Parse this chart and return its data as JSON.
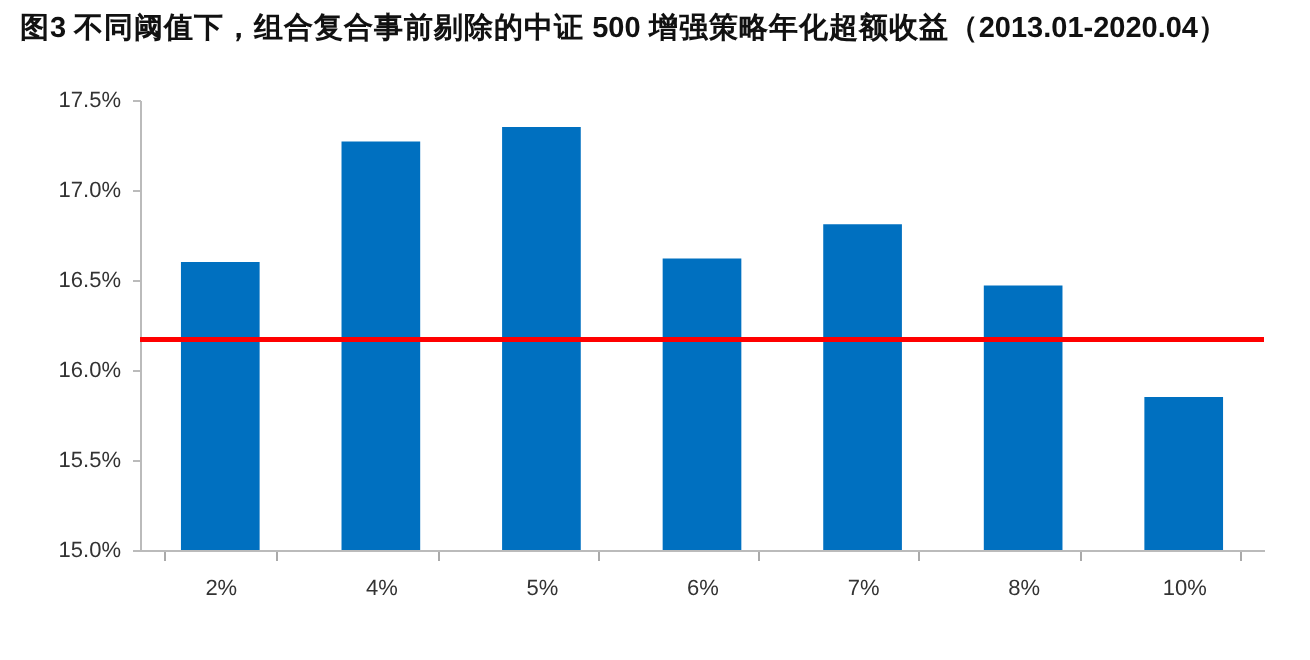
{
  "chart_data": {
    "type": "bar",
    "title": "图3  不同阈值下，组合复合事前剔除的中证 500 增强策略年化超额收益（2013.01-2020.04）",
    "categories": [
      "2%",
      "4%",
      "5%",
      "6%",
      "7%",
      "8%",
      "10%"
    ],
    "values": [
      16.6,
      17.27,
      17.35,
      16.62,
      16.81,
      16.47,
      15.85
    ],
    "color": "#0070c0",
    "ylim": [
      15.0,
      17.5
    ],
    "yticks": [
      {
        "value": 15.0,
        "label": "15.0%"
      },
      {
        "value": 15.5,
        "label": "15.5%"
      },
      {
        "value": 16.0,
        "label": "16.0%"
      },
      {
        "value": 16.5,
        "label": "16.5%"
      },
      {
        "value": 17.0,
        "label": "17.0%"
      },
      {
        "value": 17.5,
        "label": "17.5%"
      }
    ],
    "ref_lines": [
      {
        "axis": "y",
        "value": 16.17,
        "label": null,
        "color": "#ff0000"
      }
    ],
    "grid": false
  }
}
